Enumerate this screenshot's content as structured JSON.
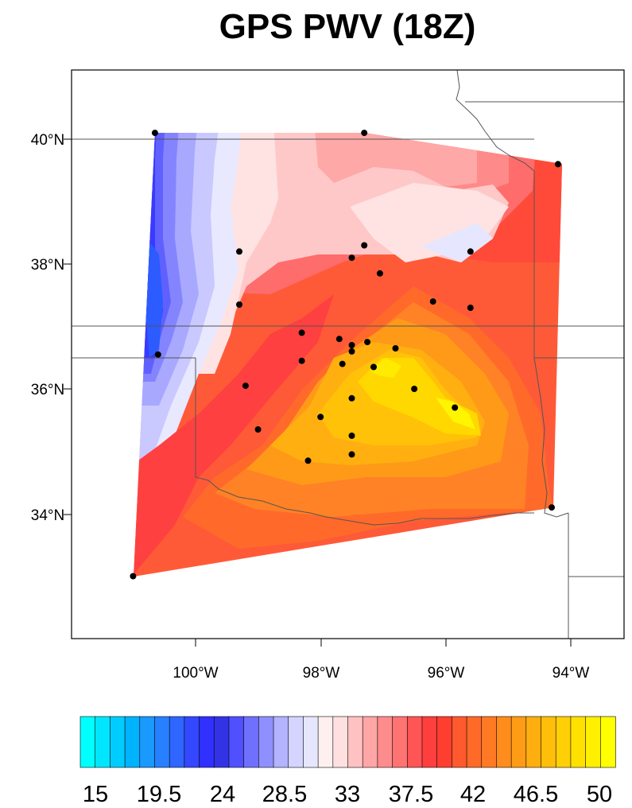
{
  "title": "GPS PWV (18Z)",
  "axes": {
    "lat_labels": [
      "40°N",
      "38°N",
      "36°N",
      "34°N"
    ],
    "lon_labels": [
      "100°W",
      "98°W",
      "96°W",
      "94°W"
    ]
  },
  "colorbar": {
    "labels": [
      "15",
      "19.5",
      "24",
      "28.5",
      "33",
      "37.5",
      "42",
      "46.5",
      "50"
    ],
    "colors": [
      "#00ffff",
      "#00e6ff",
      "#00ccff",
      "#00b3ff",
      "#1a99ff",
      "#2680ff",
      "#2e66ff",
      "#3348ff",
      "#3030ff",
      "#3333e6",
      "#5050ff",
      "#7070ff",
      "#8f8fff",
      "#b3b3ff",
      "#d4d4ff",
      "#e6e6ff",
      "#fff0f0",
      "#ffe0e0",
      "#ffc2c2",
      "#ffa6a6",
      "#ff8c8c",
      "#ff7373",
      "#ff5555",
      "#ff3e3e",
      "#ff3e30",
      "#ff5a2e",
      "#ff6a28",
      "#ff7a22",
      "#ff8c1c",
      "#ff9c16",
      "#ffae10",
      "#ffbe0a",
      "#ffd005",
      "#ffe100",
      "#fff000",
      "#ffff00"
    ]
  },
  "chart_data": {
    "type": "contour-map",
    "title": "GPS PWV (18Z)",
    "variable": "GPS PWV",
    "contour_levels": [
      15,
      19.5,
      24,
      28.5,
      33,
      37.5,
      42,
      46.5,
      50
    ],
    "lat_range": [
      32,
      41
    ],
    "lon_range": [
      -102,
      -93.2
    ],
    "stations": [
      {
        "lon": -100.65,
        "lat": 40.1,
        "pwv": 29
      },
      {
        "lon": -97.3,
        "lat": 40.1,
        "pwv": 37
      },
      {
        "lon": -94.2,
        "lat": 39.6,
        "pwv": 41
      },
      {
        "lon": -99.3,
        "lat": 38.2,
        "pwv": 33
      },
      {
        "lon": -97.3,
        "lat": 38.3,
        "pwv": 36
      },
      {
        "lon": -97.5,
        "lat": 38.1,
        "pwv": 37
      },
      {
        "lon": -95.6,
        "lat": 38.2,
        "pwv": 33
      },
      {
        "lon": -97.05,
        "lat": 37.85,
        "pwv": 40
      },
      {
        "lon": -99.3,
        "lat": 37.35,
        "pwv": 33
      },
      {
        "lon": -96.2,
        "lat": 37.4,
        "pwv": 42
      },
      {
        "lon": -95.6,
        "lat": 37.3,
        "pwv": 41
      },
      {
        "lon": -98.3,
        "lat": 36.9,
        "pwv": 42
      },
      {
        "lon": -97.7,
        "lat": 36.8,
        "pwv": 45
      },
      {
        "lon": -97.5,
        "lat": 36.7,
        "pwv": 47
      },
      {
        "lon": -97.5,
        "lat": 36.6,
        "pwv": 47
      },
      {
        "lon": -97.25,
        "lat": 36.75,
        "pwv": 47
      },
      {
        "lon": -96.8,
        "lat": 36.65,
        "pwv": 48
      },
      {
        "lon": -97.15,
        "lat": 36.35,
        "pwv": 49
      },
      {
        "lon": -98.3,
        "lat": 36.45,
        "pwv": 44
      },
      {
        "lon": -97.65,
        "lat": 36.4,
        "pwv": 46
      },
      {
        "lon": -100.6,
        "lat": 36.55,
        "pwv": 24
      },
      {
        "lon": -99.2,
        "lat": 36.05,
        "pwv": 38
      },
      {
        "lon": -96.5,
        "lat": 36.0,
        "pwv": 47
      },
      {
        "lon": -97.5,
        "lat": 35.85,
        "pwv": 46
      },
      {
        "lon": -95.85,
        "lat": 35.7,
        "pwv": 49
      },
      {
        "lon": -98.0,
        "lat": 35.55,
        "pwv": 47
      },
      {
        "lon": -99.0,
        "lat": 35.35,
        "pwv": 43
      },
      {
        "lon": -97.5,
        "lat": 35.25,
        "pwv": 46
      },
      {
        "lon": -97.5,
        "lat": 34.95,
        "pwv": 45
      },
      {
        "lon": -98.2,
        "lat": 34.85,
        "pwv": 44
      },
      {
        "lon": -94.3,
        "lat": 34.1,
        "pwv": 44
      },
      {
        "lon": -101.0,
        "lat": 33.0,
        "pwv": 40
      }
    ]
  }
}
